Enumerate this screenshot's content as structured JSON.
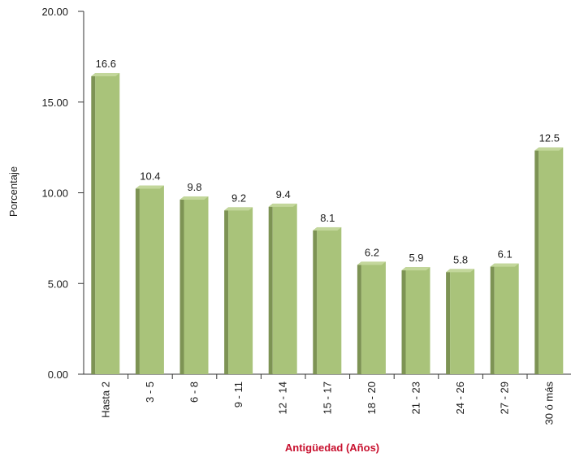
{
  "chart_data": {
    "type": "bar",
    "title": "",
    "xlabel": "Antigüedad (Años)",
    "ylabel": "Porcentaje",
    "categories": [
      "Hasta 2",
      "3 - 5",
      "6 - 8",
      "9 - 11",
      "12 - 14",
      "15 - 17",
      "18 - 20",
      "21 - 23",
      "24 - 26",
      "27 - 29",
      "30 ó más"
    ],
    "values": [
      16.6,
      10.4,
      9.8,
      9.2,
      9.4,
      8.1,
      6.2,
      5.9,
      5.8,
      6.1,
      12.5
    ],
    "value_labels": [
      "16.6",
      "10.4",
      "9.8",
      "9.2",
      "9.4",
      "8.1",
      "6.2",
      "5.9",
      "5.8",
      "6.1",
      "12.5"
    ],
    "ylim": [
      0,
      20
    ],
    "yticks": [
      "0.00",
      "5.00",
      "10.00",
      "15.00",
      "20.00"
    ],
    "grid": false,
    "legend": "none",
    "colors": {
      "bar_front": "#a9c37a",
      "bar_side": "#7d9354",
      "bar_top": "#c3d79b",
      "axis": "#333333",
      "xlabel": "#c8102e"
    }
  }
}
